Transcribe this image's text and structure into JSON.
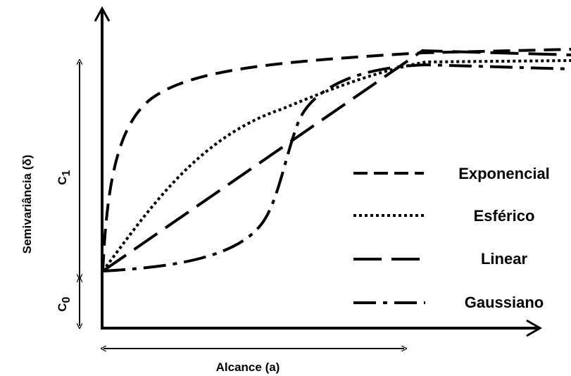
{
  "chart_data": {
    "type": "line",
    "title": "",
    "xlabel": "Alcance (a)",
    "ylabel": "Semivariância (δ)",
    "grid": false,
    "legend_position": "right",
    "axis_color": "#000000",
    "line_color": "#000000",
    "annotations": {
      "c1": {
        "text": "C",
        "sub": "1"
      },
      "c0": {
        "text": "C",
        "sub": "0"
      }
    },
    "series": [
      {
        "name": "Exponencial",
        "dash": "dashed"
      },
      {
        "name": "Esférico",
        "dash": "dotted"
      },
      {
        "name": "Linear",
        "dash": "long-dash"
      },
      {
        "name": "Gaussiano",
        "dash": "dash-dot"
      }
    ]
  }
}
